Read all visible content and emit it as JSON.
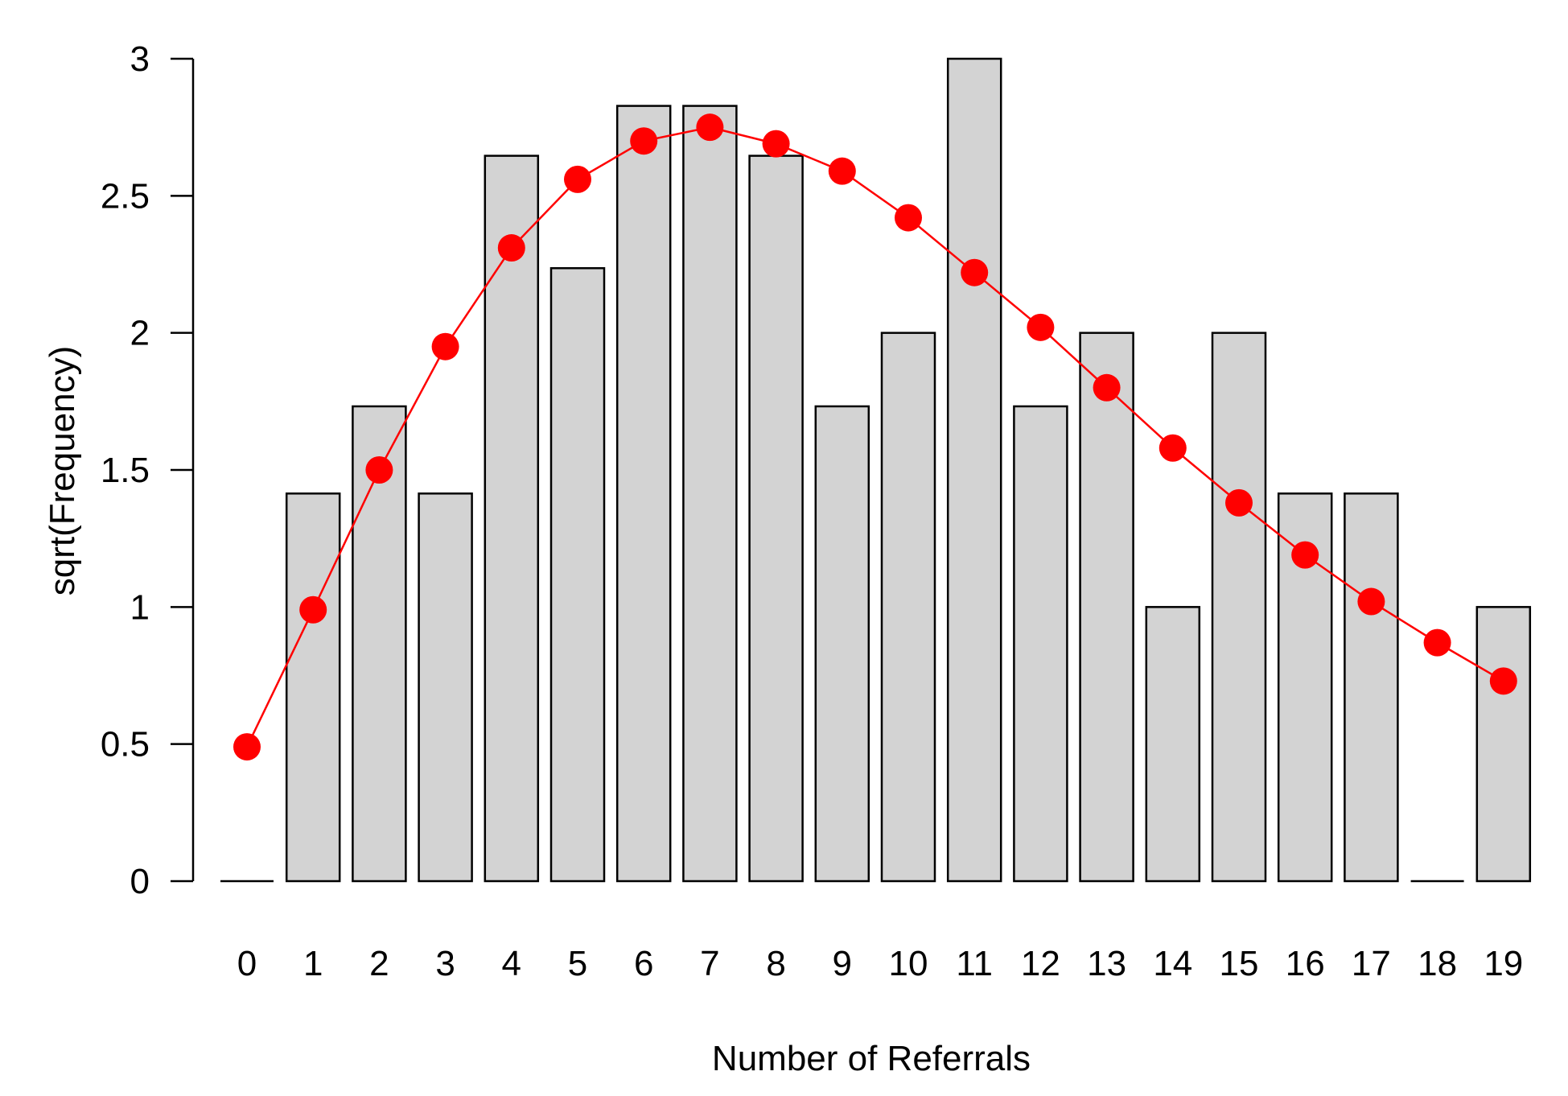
{
  "chart_data": {
    "type": "bar",
    "xlabel": "Number of Referrals",
    "ylabel": "sqrt(Frequency)",
    "ylim": [
      0,
      3
    ],
    "yticks": [
      0,
      0.5,
      1,
      1.5,
      2,
      2.5,
      3
    ],
    "ytick_labels": [
      "0",
      "0.5",
      "1",
      "1.5",
      "2",
      "2.5",
      "3"
    ],
    "categories": [
      "0",
      "1",
      "2",
      "3",
      "4",
      "5",
      "6",
      "7",
      "8",
      "9",
      "10",
      "11",
      "12",
      "13",
      "14",
      "15",
      "16",
      "17",
      "18",
      "19"
    ],
    "series": [
      {
        "type": "bar",
        "values": [
          0,
          1.414,
          1.732,
          1.414,
          2.646,
          2.236,
          2.828,
          2.828,
          2.646,
          1.732,
          2,
          3,
          1.732,
          2,
          1,
          2,
          1.414,
          1.414,
          0,
          1
        ],
        "color": "#d3d3d3",
        "stroke": "#000000"
      },
      {
        "type": "line",
        "values": [
          0.49,
          0.99,
          1.5,
          1.95,
          2.31,
          2.56,
          2.7,
          2.75,
          2.69,
          2.59,
          2.42,
          2.22,
          2.02,
          1.8,
          1.58,
          1.38,
          1.19,
          1.02,
          0.87,
          0.73
        ],
        "color": "#ff0000",
        "marker": "filled-circle"
      }
    ],
    "grid": false,
    "legend": "none"
  }
}
